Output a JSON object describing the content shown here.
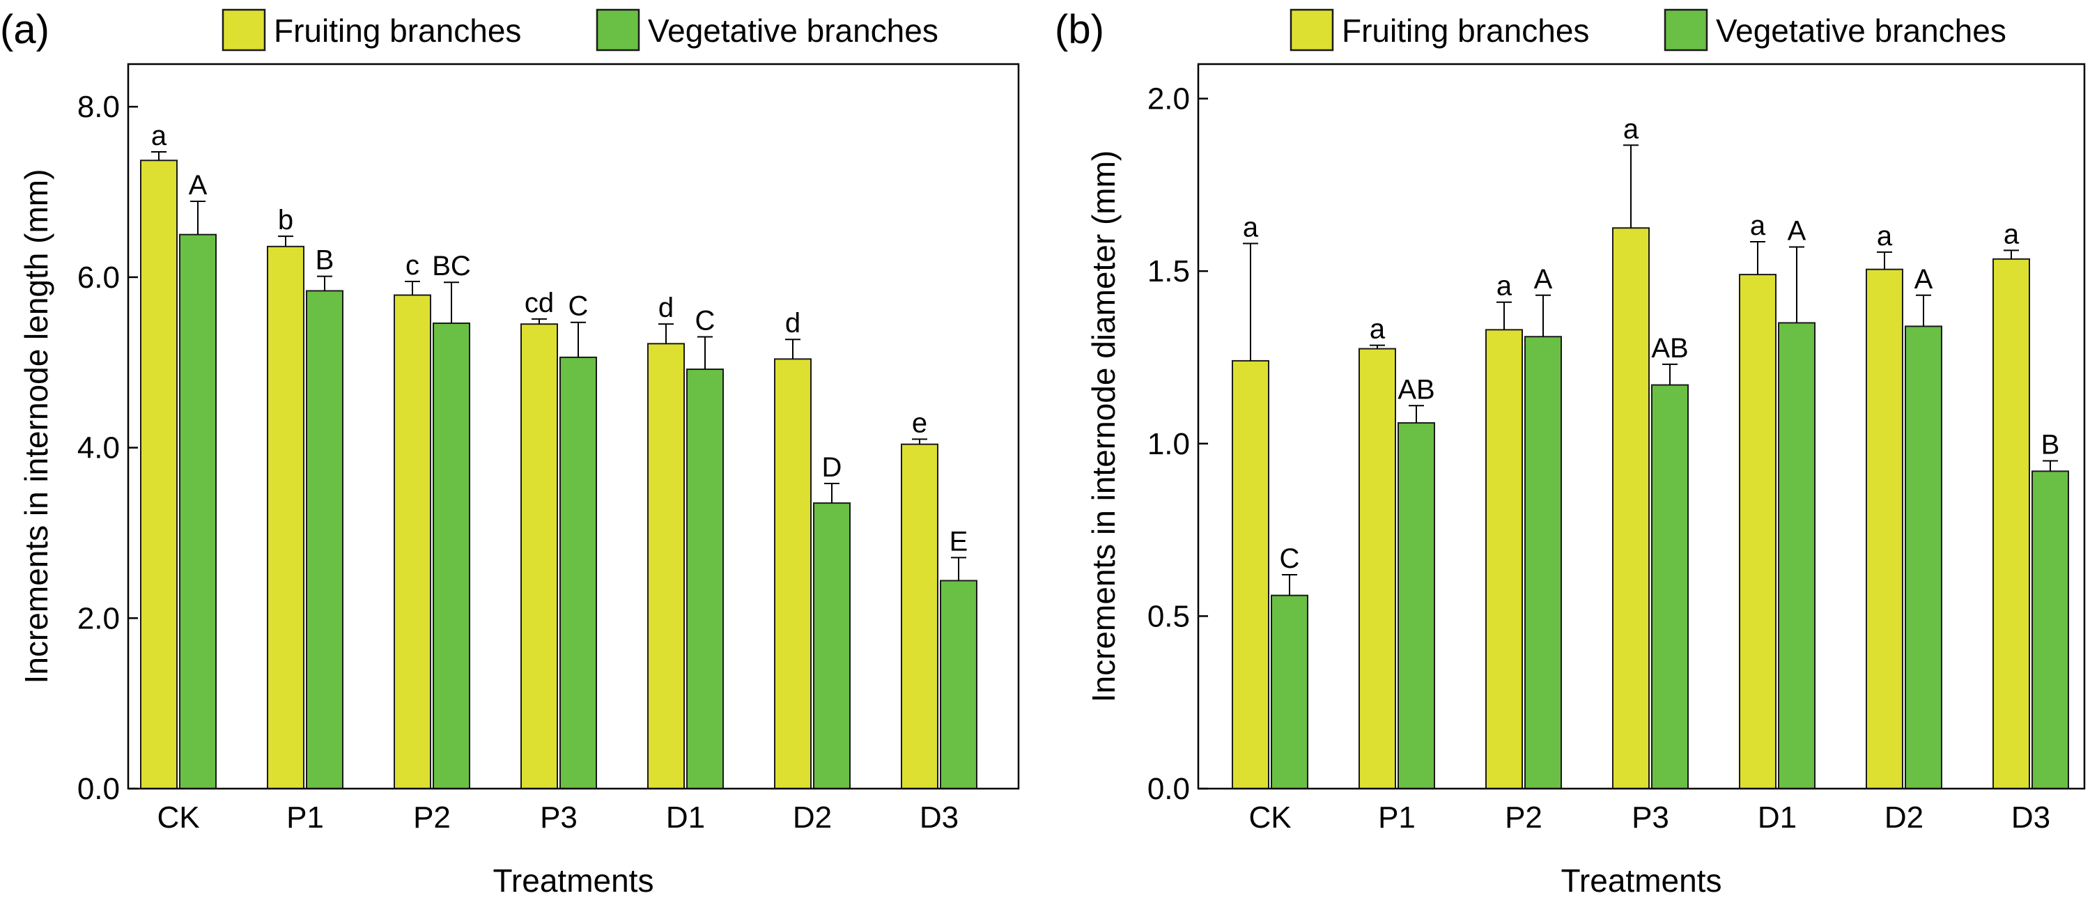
{
  "colors": {
    "fruiting": "#dde030",
    "vegetative": "#6abf45",
    "outline": "#1a1a1a"
  },
  "chart_data": [
    {
      "type": "bar",
      "panel_label": "(a)",
      "xlabel": "Treatments",
      "ylabel": "Increments in internode length (mm)",
      "ylim": [
        0,
        8.5
      ],
      "yticks": [
        0,
        2,
        4,
        6,
        8
      ],
      "ytick_labels": [
        "0.0",
        "2.0",
        "4.0",
        "6.0",
        "8.0"
      ],
      "categories": [
        "CK",
        "P1",
        "P2",
        "P3",
        "D1",
        "D2",
        "D3"
      ],
      "legend_position": "top",
      "series": [
        {
          "name": "Fruiting branches",
          "color_key": "fruiting",
          "values": [
            7.37,
            6.36,
            5.79,
            5.45,
            5.22,
            5.04,
            4.04
          ],
          "errors": [
            0.1,
            0.12,
            0.16,
            0.06,
            0.23,
            0.23,
            0.06
          ],
          "labels": [
            "a",
            "b",
            "c",
            "cd",
            "d",
            "d",
            "e"
          ]
        },
        {
          "name": "Vegetative branches",
          "color_key": "vegetative",
          "values": [
            6.5,
            5.84,
            5.46,
            5.06,
            4.92,
            3.35,
            2.44
          ],
          "errors": [
            0.39,
            0.17,
            0.48,
            0.41,
            0.38,
            0.23,
            0.27
          ],
          "labels": [
            "A",
            "B",
            "BC",
            "C",
            "C",
            "D",
            "E"
          ]
        }
      ]
    },
    {
      "type": "bar",
      "panel_label": "(b)",
      "xlabel": "Treatments",
      "ylabel": "Increments in internode diameter (mm)",
      "ylim": [
        0,
        2.1
      ],
      "yticks": [
        0,
        0.5,
        1,
        1.5,
        2
      ],
      "ytick_labels": [
        "0.0",
        "0.5",
        "1.0",
        "1.5",
        "2.0"
      ],
      "categories": [
        "CK",
        "P1",
        "P2",
        "P3",
        "D1",
        "D2",
        "D3"
      ],
      "legend_position": "top",
      "series": [
        {
          "name": "Fruiting branches",
          "color_key": "fruiting",
          "values": [
            1.24,
            1.275,
            1.33,
            1.625,
            1.49,
            1.505,
            1.535
          ],
          "errors": [
            0.34,
            0.01,
            0.08,
            0.24,
            0.095,
            0.05,
            0.025
          ],
          "labels": [
            "a",
            "a",
            "a",
            "a",
            "a",
            "a",
            "a"
          ]
        },
        {
          "name": "Vegetative branches",
          "color_key": "vegetative",
          "values": [
            0.56,
            1.06,
            1.31,
            1.17,
            1.35,
            1.34,
            0.92
          ],
          "errors": [
            0.06,
            0.05,
            0.12,
            0.06,
            0.22,
            0.09,
            0.03
          ],
          "labels": [
            "C",
            "AB",
            "A",
            "AB",
            "A",
            "A",
            "B"
          ]
        }
      ]
    }
  ]
}
